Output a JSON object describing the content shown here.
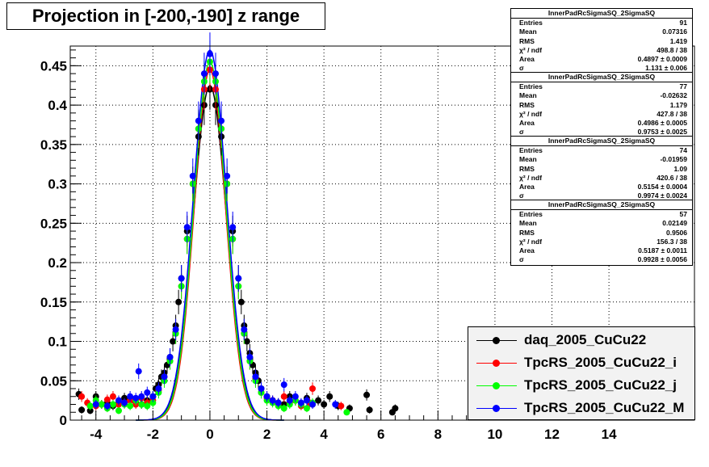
{
  "title": "Projection in [-200,-190] z range",
  "stats_boxes": [
    {
      "name": "InnerPadRcSigmaSQ_2SigmaSQ",
      "rows": [
        [
          "Entries",
          "91"
        ],
        [
          "Mean",
          "0.07316"
        ],
        [
          "RMS",
          "1.419"
        ],
        [
          "χ² / ndf",
          "498.8 / 38"
        ],
        [
          "Area",
          "0.4897 ± 0.0009"
        ],
        [
          "σ",
          "1.131 ± 0.006"
        ]
      ]
    },
    {
      "name": "InnerPadRcSigmaSQ_2SigmaSQ",
      "rows": [
        [
          "Entries",
          "77"
        ],
        [
          "Mean",
          "-0.02632"
        ],
        [
          "RMS",
          "1.179"
        ],
        [
          "χ² / ndf",
          "427.8 / 38"
        ],
        [
          "Area",
          "0.4986 ± 0.0005"
        ],
        [
          "σ",
          "0.9753 ± 0.0025"
        ]
      ]
    },
    {
      "name": "InnerPadRcSigmaSQ_2SigmaSQ",
      "rows": [
        [
          "Entries",
          "74"
        ],
        [
          "Mean",
          "-0.01959"
        ],
        [
          "RMS",
          "1.09"
        ],
        [
          "χ² / ndf",
          "420.6 / 38"
        ],
        [
          "Area",
          "0.5154 ± 0.0004"
        ],
        [
          "σ",
          "0.9974 ± 0.0024"
        ]
      ]
    },
    {
      "name": "InnerPadRcSigmaSQ_2SigmaSQ",
      "rows": [
        [
          "Entries",
          "57"
        ],
        [
          "Mean",
          "0.02149"
        ],
        [
          "RMS",
          "0.9506"
        ],
        [
          "χ² / ndf",
          "156.3 / 38"
        ],
        [
          "Area",
          "0.5187 ± 0.0011"
        ],
        [
          "σ",
          "0.9928 ± 0.0056"
        ]
      ]
    }
  ],
  "legend": [
    {
      "label": "daq_2005_CuCu22",
      "color": "#000000"
    },
    {
      "label": "TpcRS_2005_CuCu22_i",
      "color": "#ff0000"
    },
    {
      "label": "TpcRS_2005_CuCu22_j",
      "color": "#00ff00"
    },
    {
      "label": "TpcRS_2005_CuCu22_M",
      "color": "#0000ff"
    }
  ],
  "chart_data": {
    "type": "scatter",
    "xlim": [
      -4.9,
      17.0
    ],
    "ylim": [
      0,
      0.475
    ],
    "x_ticks": [
      -4,
      -2,
      0,
      2,
      4,
      6,
      8,
      10,
      12,
      14
    ],
    "y_ticks": [
      0,
      0.05,
      0.1,
      0.15,
      0.2,
      0.25,
      0.3,
      0.35,
      0.4,
      0.45
    ],
    "y_tick_labels": [
      "0",
      "0.05",
      "0.1",
      "0.15",
      "0.2",
      "0.25",
      "0.3",
      "0.35",
      "0.4",
      "0.45"
    ],
    "grid": true,
    "series": [
      {
        "name": "daq_2005_CuCu22",
        "color": "#000000",
        "fit": {
          "amp": 0.425,
          "sigma": 0.58
        },
        "points": [
          [
            -4.6,
            0.033
          ],
          [
            -4.5,
            0.013
          ],
          [
            -4.2,
            0.012
          ],
          [
            -4.0,
            0.03
          ],
          [
            -3.8,
            0.02
          ],
          [
            -3.6,
            0.022
          ],
          [
            -3.4,
            0.018
          ],
          [
            -3.2,
            0.022
          ],
          [
            -3.0,
            0.028
          ],
          [
            -2.8,
            0.025
          ],
          [
            -2.6,
            0.022
          ],
          [
            -2.4,
            0.02
          ],
          [
            -2.2,
            0.025
          ],
          [
            -2.0,
            0.03
          ],
          [
            -1.9,
            0.04
          ],
          [
            -1.8,
            0.045
          ],
          [
            -1.7,
            0.055
          ],
          [
            -1.6,
            0.06
          ],
          [
            -1.5,
            0.07
          ],
          [
            -1.4,
            0.08
          ],
          [
            -1.3,
            0.1
          ],
          [
            -1.2,
            0.12
          ],
          [
            -1.1,
            0.15
          ],
          [
            -1.0,
            0.18
          ],
          [
            -0.8,
            0.24
          ],
          [
            -0.6,
            0.3
          ],
          [
            -0.4,
            0.36
          ],
          [
            -0.2,
            0.4
          ],
          [
            0,
            0.42
          ],
          [
            0.2,
            0.4
          ],
          [
            0.4,
            0.36
          ],
          [
            0.6,
            0.3
          ],
          [
            0.8,
            0.24
          ],
          [
            1.0,
            0.18
          ],
          [
            1.1,
            0.15
          ],
          [
            1.2,
            0.12
          ],
          [
            1.3,
            0.1
          ],
          [
            1.4,
            0.085
          ],
          [
            1.5,
            0.07
          ],
          [
            1.6,
            0.06
          ],
          [
            1.7,
            0.05
          ],
          [
            1.8,
            0.04
          ],
          [
            2.0,
            0.03
          ],
          [
            2.2,
            0.025
          ],
          [
            2.4,
            0.022
          ],
          [
            2.6,
            0.02
          ],
          [
            2.8,
            0.03
          ],
          [
            3.0,
            0.025
          ],
          [
            3.2,
            0.02
          ],
          [
            3.4,
            0.028
          ],
          [
            3.6,
            0.02
          ],
          [
            3.8,
            0.025
          ],
          [
            4.0,
            0.02
          ],
          [
            4.2,
            0.03
          ],
          [
            4.5,
            0.018
          ],
          [
            4.9,
            0.015
          ],
          [
            5.5,
            0.032
          ],
          [
            5.6,
            0.013
          ],
          [
            6.4,
            0.01
          ],
          [
            6.5,
            0.015
          ]
        ]
      },
      {
        "name": "TpcRS_2005_CuCu22_i",
        "color": "#ff0000",
        "fit": {
          "amp": 0.445,
          "sigma": 0.55
        },
        "points": [
          [
            -4.5,
            0.03
          ],
          [
            -4.3,
            0.022
          ],
          [
            -4.0,
            0.018
          ],
          [
            -3.8,
            0.02
          ],
          [
            -3.6,
            0.026
          ],
          [
            -3.4,
            0.03
          ],
          [
            -3.2,
            0.02
          ],
          [
            -3.0,
            0.022
          ],
          [
            -2.8,
            0.025
          ],
          [
            -2.6,
            0.02
          ],
          [
            -2.4,
            0.028
          ],
          [
            -2.2,
            0.022
          ],
          [
            -2.0,
            0.025
          ],
          [
            -1.8,
            0.038
          ],
          [
            -1.6,
            0.055
          ],
          [
            -1.4,
            0.075
          ],
          [
            -1.2,
            0.11
          ],
          [
            -1.0,
            0.17
          ],
          [
            -0.8,
            0.23
          ],
          [
            -0.6,
            0.3
          ],
          [
            -0.4,
            0.37
          ],
          [
            -0.2,
            0.42
          ],
          [
            0,
            0.445
          ],
          [
            0.2,
            0.42
          ],
          [
            0.4,
            0.37
          ],
          [
            0.6,
            0.3
          ],
          [
            0.8,
            0.23
          ],
          [
            1.0,
            0.17
          ],
          [
            1.2,
            0.11
          ],
          [
            1.4,
            0.075
          ],
          [
            1.6,
            0.052
          ],
          [
            1.8,
            0.035
          ],
          [
            2.0,
            0.028
          ],
          [
            2.2,
            0.025
          ],
          [
            2.4,
            0.02
          ],
          [
            2.6,
            0.03
          ],
          [
            2.8,
            0.022
          ],
          [
            3.0,
            0.025
          ],
          [
            3.2,
            0.018
          ],
          [
            3.5,
            0.022
          ],
          [
            3.6,
            0.04
          ],
          [
            4.6,
            0.018
          ]
        ]
      },
      {
        "name": "TpcRS_2005_CuCu22_j",
        "color": "#00ff00",
        "fit": {
          "amp": 0.455,
          "sigma": 0.56
        },
        "points": [
          [
            -4.2,
            0.018
          ],
          [
            -4.0,
            0.025
          ],
          [
            -3.8,
            0.02
          ],
          [
            -3.6,
            0.015
          ],
          [
            -3.4,
            0.02
          ],
          [
            -3.2,
            0.012
          ],
          [
            -3.0,
            0.02
          ],
          [
            -2.8,
            0.018
          ],
          [
            -2.6,
            0.025
          ],
          [
            -2.4,
            0.02
          ],
          [
            -2.2,
            0.018
          ],
          [
            -2.0,
            0.022
          ],
          [
            -1.8,
            0.035
          ],
          [
            -1.6,
            0.05
          ],
          [
            -1.4,
            0.075
          ],
          [
            -1.2,
            0.11
          ],
          [
            -1.0,
            0.17
          ],
          [
            -0.8,
            0.23
          ],
          [
            -0.6,
            0.3
          ],
          [
            -0.4,
            0.37
          ],
          [
            -0.2,
            0.43
          ],
          [
            0,
            0.455
          ],
          [
            0.2,
            0.43
          ],
          [
            0.4,
            0.37
          ],
          [
            0.6,
            0.3
          ],
          [
            0.8,
            0.23
          ],
          [
            1.0,
            0.17
          ],
          [
            1.2,
            0.11
          ],
          [
            1.4,
            0.075
          ],
          [
            1.6,
            0.05
          ],
          [
            1.8,
            0.035
          ],
          [
            2.0,
            0.025
          ],
          [
            2.2,
            0.022
          ],
          [
            2.4,
            0.018
          ],
          [
            2.6,
            0.015
          ],
          [
            2.8,
            0.02
          ],
          [
            3.0,
            0.025
          ],
          [
            3.2,
            0.02
          ],
          [
            3.4,
            0.015
          ],
          [
            3.6,
            0.022
          ],
          [
            4.8,
            0.01
          ]
        ]
      },
      {
        "name": "TpcRS_2005_CuCu22_M",
        "color": "#0000ff",
        "fit": {
          "amp": 0.47,
          "sigma": 0.58
        },
        "points": [
          [
            -4.0,
            0.02
          ],
          [
            -3.6,
            0.018
          ],
          [
            -3.2,
            0.025
          ],
          [
            -3.0,
            0.022
          ],
          [
            -2.8,
            0.03
          ],
          [
            -2.6,
            0.028
          ],
          [
            -2.5,
            0.062
          ],
          [
            -2.4,
            0.03
          ],
          [
            -2.2,
            0.035
          ],
          [
            -2.0,
            0.03
          ],
          [
            -1.8,
            0.04
          ],
          [
            -1.6,
            0.055
          ],
          [
            -1.4,
            0.08
          ],
          [
            -1.2,
            0.115
          ],
          [
            -1.0,
            0.18
          ],
          [
            -0.8,
            0.245
          ],
          [
            -0.6,
            0.31
          ],
          [
            -0.4,
            0.38
          ],
          [
            -0.2,
            0.44
          ],
          [
            0,
            0.465
          ],
          [
            0.2,
            0.44
          ],
          [
            0.4,
            0.38
          ],
          [
            0.6,
            0.31
          ],
          [
            0.8,
            0.245
          ],
          [
            1.0,
            0.18
          ],
          [
            1.2,
            0.115
          ],
          [
            1.4,
            0.08
          ],
          [
            1.6,
            0.055
          ],
          [
            1.8,
            0.04
          ],
          [
            2.0,
            0.03
          ],
          [
            2.2,
            0.025
          ],
          [
            2.4,
            0.022
          ],
          [
            2.6,
            0.045
          ],
          [
            2.8,
            0.025
          ],
          [
            3.0,
            0.03
          ],
          [
            3.2,
            0.022
          ],
          [
            3.4,
            0.025
          ],
          [
            3.6,
            0.02
          ],
          [
            4.4,
            0.02
          ]
        ]
      }
    ]
  }
}
